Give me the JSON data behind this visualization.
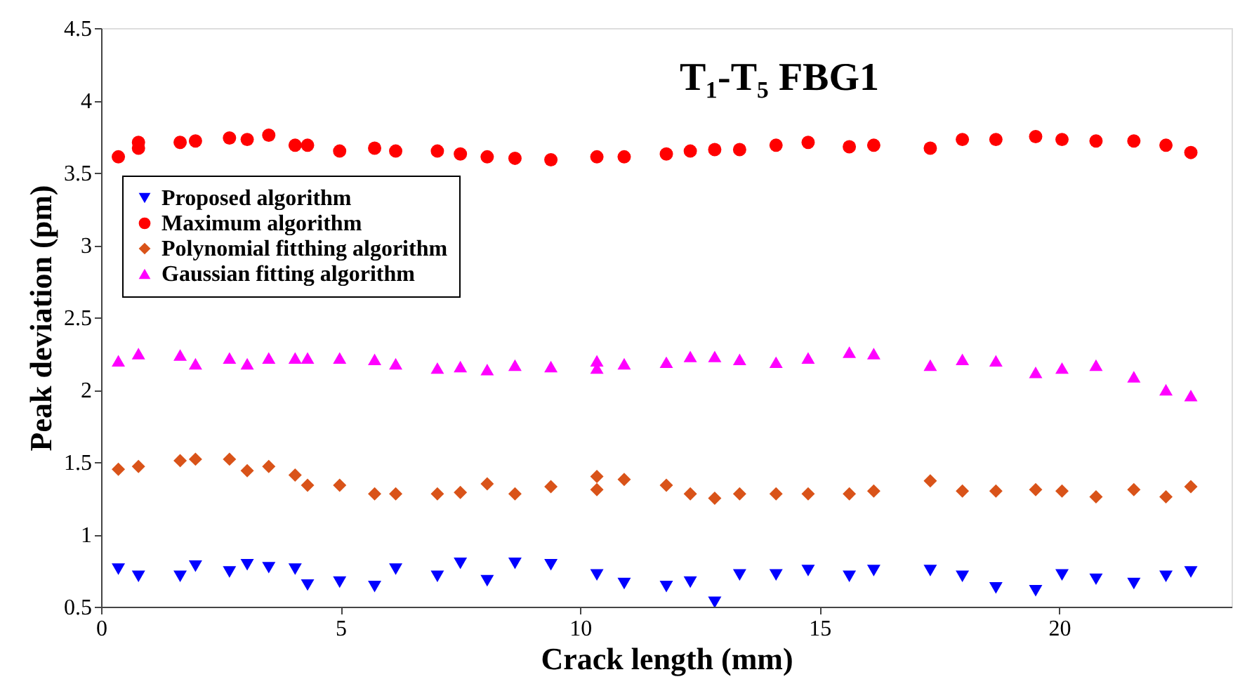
{
  "chart_data": {
    "type": "scatter",
    "title": "T₁-T₅ FBG1",
    "xlabel": "Crack length (mm)",
    "ylabel": "Peak deviation (pm)",
    "xlim": [
      0,
      23.6
    ],
    "xticks": [
      0,
      5,
      10,
      15,
      20
    ],
    "ylim": [
      0.5,
      4.5
    ],
    "yticks": [
      0.5,
      1,
      1.5,
      2,
      2.5,
      3,
      3.5,
      4,
      4.5
    ],
    "legend": "top left",
    "grid": false,
    "series": [
      {
        "name": "Proposed algorithm",
        "color": "#0000ff",
        "marker": "triangle-down",
        "x": [
          0.36,
          0.78,
          1.65,
          1.97,
          2.68,
          3.05,
          3.5,
          4.05,
          4.31,
          4.98,
          5.71,
          6.15,
          7.02,
          7.5,
          8.06,
          8.64,
          9.39,
          10.35,
          10.92,
          11.8,
          12.3,
          12.81,
          13.33,
          14.09,
          14.76,
          15.62,
          16.13,
          17.31,
          17.98,
          18.68,
          19.51,
          20.06,
          20.77,
          21.56,
          22.23,
          22.75
        ],
        "values": [
          0.76,
          0.71,
          0.71,
          0.78,
          0.74,
          0.79,
          0.77,
          0.76,
          0.65,
          0.67,
          0.64,
          0.76,
          0.71,
          0.8,
          0.68,
          0.8,
          0.79,
          0.72,
          0.66,
          0.64,
          0.67,
          0.53,
          0.72,
          0.72,
          0.75,
          0.71,
          0.75,
          0.75,
          0.71,
          0.63,
          0.61,
          0.72,
          0.69,
          0.66,
          0.71,
          0.74
        ]
      },
      {
        "name": "Maximum algorithm",
        "color": "#ff0000",
        "marker": "circle",
        "x": [
          0.36,
          0.78,
          0.78,
          1.65,
          1.97,
          2.68,
          3.05,
          3.5,
          4.05,
          4.31,
          4.98,
          5.71,
          6.15,
          7.02,
          7.5,
          8.06,
          8.64,
          9.39,
          10.35,
          10.92,
          11.8,
          12.3,
          12.81,
          13.33,
          14.09,
          14.76,
          15.62,
          16.13,
          17.31,
          17.98,
          18.68,
          19.51,
          20.06,
          20.77,
          21.56,
          22.23,
          22.75
        ],
        "values": [
          3.61,
          3.71,
          3.67,
          3.71,
          3.72,
          3.74,
          3.73,
          3.76,
          3.69,
          3.69,
          3.65,
          3.67,
          3.65,
          3.65,
          3.63,
          3.61,
          3.6,
          3.59,
          3.61,
          3.61,
          3.63,
          3.65,
          3.66,
          3.66,
          3.69,
          3.71,
          3.68,
          3.69,
          3.67,
          3.73,
          3.73,
          3.75,
          3.73,
          3.72,
          3.72,
          3.69,
          3.64
        ]
      },
      {
        "name": "Polynomial fitthing algorithm",
        "color": "#d95319",
        "marker": "diamond",
        "x": [
          0.36,
          0.78,
          1.65,
          1.97,
          2.68,
          3.05,
          3.5,
          4.05,
          4.31,
          4.98,
          5.71,
          6.15,
          7.02,
          7.5,
          8.06,
          8.64,
          9.39,
          10.35,
          10.35,
          10.92,
          11.8,
          12.3,
          12.81,
          13.33,
          14.09,
          14.76,
          15.62,
          16.13,
          17.31,
          17.98,
          18.68,
          19.51,
          20.06,
          20.77,
          21.56,
          22.23,
          22.75
        ],
        "values": [
          1.45,
          1.47,
          1.51,
          1.52,
          1.52,
          1.44,
          1.47,
          1.41,
          1.34,
          1.34,
          1.28,
          1.28,
          1.28,
          1.29,
          1.35,
          1.28,
          1.33,
          1.4,
          1.31,
          1.38,
          1.34,
          1.28,
          1.25,
          1.28,
          1.28,
          1.28,
          1.28,
          1.3,
          1.37,
          1.3,
          1.3,
          1.31,
          1.3,
          1.26,
          1.31,
          1.26,
          1.33
        ]
      },
      {
        "name": "Gaussian fitting algorithm",
        "color": "#ff00ff",
        "marker": "triangle",
        "x": [
          0.36,
          0.78,
          1.65,
          1.97,
          2.68,
          3.05,
          3.5,
          4.05,
          4.31,
          4.98,
          5.71,
          6.15,
          7.02,
          7.5,
          8.06,
          8.64,
          9.39,
          10.35,
          10.35,
          10.92,
          11.8,
          12.3,
          12.81,
          13.33,
          14.09,
          14.76,
          15.62,
          16.13,
          17.31,
          17.98,
          18.68,
          19.51,
          20.06,
          20.77,
          21.56,
          22.23,
          22.75
        ],
        "values": [
          2.2,
          2.25,
          2.24,
          2.18,
          2.22,
          2.18,
          2.22,
          2.22,
          2.22,
          2.22,
          2.21,
          2.18,
          2.15,
          2.16,
          2.14,
          2.17,
          2.16,
          2.2,
          2.15,
          2.18,
          2.19,
          2.23,
          2.23,
          2.21,
          2.19,
          2.22,
          2.26,
          2.25,
          2.17,
          2.21,
          2.2,
          2.12,
          2.15,
          2.17,
          2.09,
          2.0,
          1.96
        ]
      }
    ]
  }
}
